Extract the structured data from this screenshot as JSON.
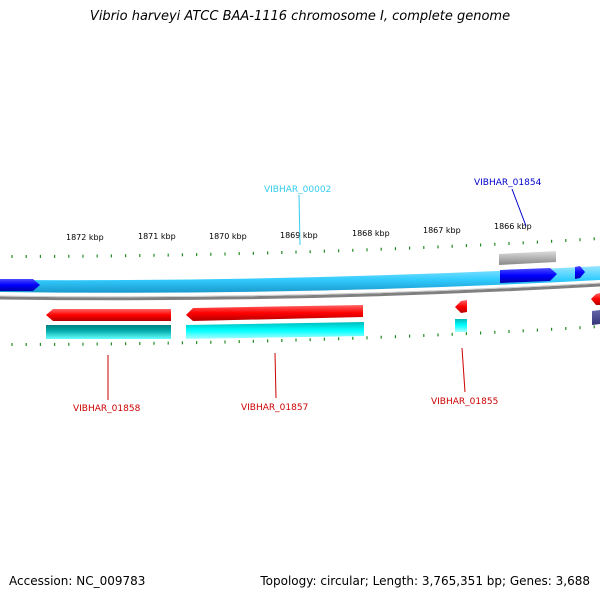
{
  "title": "Vibrio harveyi ATCC BAA-1116 chromosome I, complete genome",
  "footer": {
    "accession": "Accession: NC_009783",
    "stats": "Topology: circular; Length: 3,765,351 bp; Genes: 3,688"
  },
  "ticks": [
    "1872 kbp",
    "1871 kbp",
    "1870 kbp",
    "1869 kbp",
    "1868 kbp",
    "1867 kbp",
    "1866 kbp"
  ],
  "gene_labels": {
    "vibhar_00002": "VIBHAR_00002",
    "vibhar_01854": "VIBHAR_01854",
    "vibhar_01858": "VIBHAR_01858",
    "vibhar_01857": "VIBHAR_01857",
    "vibhar_01855": "VIBHAR_01855"
  },
  "colors": {
    "forward_cds": "#ff0000",
    "reverse_cds": "#0000ff",
    "rrna_teal": "#00cccc",
    "backbone_cyan": "#33ccff",
    "backbone_grey": "#808080",
    "tick_green": "#228b22",
    "label_red": "#cc0000",
    "label_blue": "#0000cc",
    "label_cyan": "#33ccee"
  }
}
